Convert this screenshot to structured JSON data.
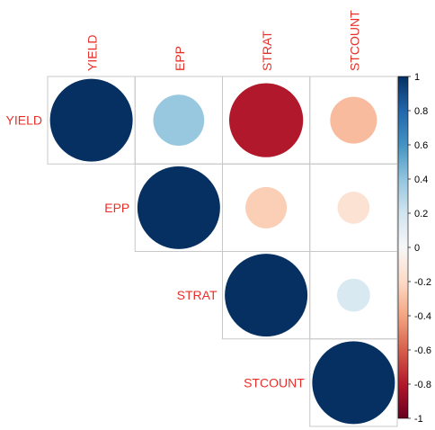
{
  "chart_data": {
    "type": "heatmap",
    "subtype": "correlation-upper-circle",
    "variables": [
      "YIELD",
      "EPP",
      "STRAT",
      "STCOUNT"
    ],
    "matrix": [
      [
        1.0,
        0.38,
        -0.8,
        -0.32
      ],
      [
        0.38,
        1.0,
        -0.25,
        -0.15
      ],
      [
        -0.8,
        -0.25,
        1.0,
        0.16
      ],
      [
        -0.32,
        -0.15,
        0.16,
        1.0
      ]
    ],
    "label_color": "#e8302a",
    "colorbar": {
      "range": [
        -1,
        1
      ],
      "ticks": [
        "1",
        "0.8",
        "0.6",
        "0.4",
        "0.2",
        "0",
        "-0.2",
        "-0.4",
        "-0.6",
        "-0.8",
        "-1"
      ],
      "colors": [
        {
          "v": -1.0,
          "c": "#67001f"
        },
        {
          "v": -0.8,
          "c": "#b2182b"
        },
        {
          "v": -0.6,
          "c": "#d6604d"
        },
        {
          "v": -0.4,
          "c": "#f4a582"
        },
        {
          "v": -0.2,
          "c": "#fddbc7"
        },
        {
          "v": 0.0,
          "c": "#f7f7f7"
        },
        {
          "v": 0.2,
          "c": "#d1e5f0"
        },
        {
          "v": 0.4,
          "c": "#92c5de"
        },
        {
          "v": 0.6,
          "c": "#4393c3"
        },
        {
          "v": 0.8,
          "c": "#2166ac"
        },
        {
          "v": 1.0,
          "c": "#053061"
        }
      ]
    }
  }
}
